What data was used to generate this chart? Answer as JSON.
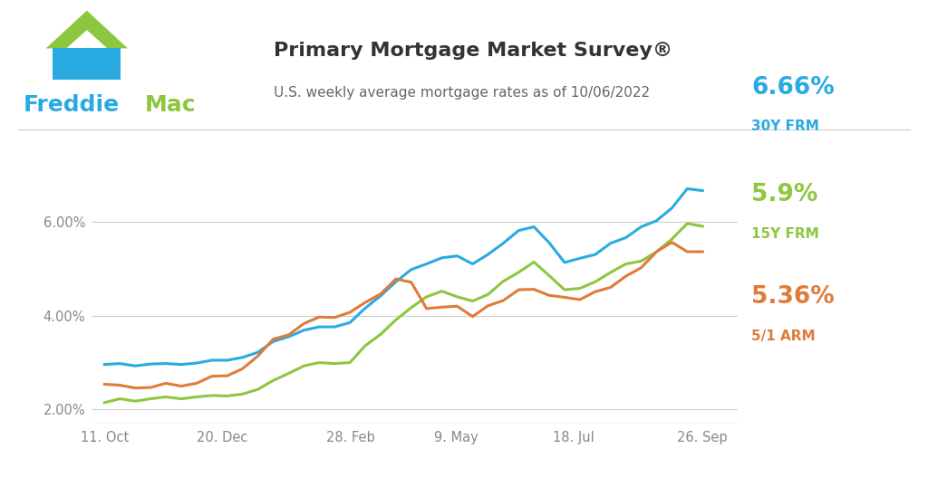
{
  "title": "Primary Mortgage Market Survey®",
  "subtitle": "U.S. weekly average mortgage rates as of 10/06/2022",
  "title_color": "#333333",
  "subtitle_color": "#666666",
  "bg_color": "#ffffff",
  "plot_bg_color": "#ffffff",
  "grid_color": "#cccccc",
  "freddie_blue": "#29abe2",
  "freddie_green": "#8dc63f",
  "x_labels": [
    "11. Oct",
    "20. Dec",
    "28. Feb",
    "9. May",
    "18. Jul",
    "26. Sep"
  ],
  "x_positions": [
    0,
    10,
    21,
    30,
    40,
    51
  ],
  "ylim": [
    1.7,
    7.4
  ],
  "yticks": [
    2.0,
    4.0,
    6.0
  ],
  "ytick_labels": [
    "2.00%",
    "4.00%",
    "6.00%"
  ],
  "line_30y_color": "#29abe2",
  "line_15y_color": "#8dc63f",
  "line_arm_color": "#e07b39",
  "label_30y": "6.66%",
  "label_30y_sub": "30Y FRM",
  "label_15y": "5.9%",
  "label_15y_sub": "15Y FRM",
  "label_arm": "5.36%",
  "label_arm_sub": "5/1 ARM",
  "series_30y": [
    2.96,
    2.98,
    2.93,
    2.97,
    2.98,
    2.96,
    2.99,
    3.05,
    3.05,
    3.11,
    3.22,
    3.45,
    3.55,
    3.69,
    3.76,
    3.76,
    3.85,
    4.16,
    4.42,
    4.72,
    4.98,
    5.1,
    5.23,
    5.27,
    5.1,
    5.3,
    5.54,
    5.81,
    5.89,
    5.55,
    5.13,
    5.22,
    5.3,
    5.54,
    5.66,
    5.89,
    6.02,
    6.29,
    6.7,
    6.66
  ],
  "series_15y": [
    2.15,
    2.23,
    2.18,
    2.23,
    2.27,
    2.23,
    2.27,
    2.3,
    2.29,
    2.33,
    2.43,
    2.62,
    2.77,
    2.93,
    3.0,
    2.98,
    3.0,
    3.36,
    3.6,
    3.91,
    4.17,
    4.4,
    4.52,
    4.4,
    4.31,
    4.45,
    4.73,
    4.92,
    5.14,
    4.85,
    4.55,
    4.58,
    4.72,
    4.92,
    5.1,
    5.16,
    5.36,
    5.63,
    5.96,
    5.9
  ],
  "series_arm": [
    2.54,
    2.52,
    2.46,
    2.47,
    2.56,
    2.5,
    2.56,
    2.71,
    2.72,
    2.87,
    3.14,
    3.5,
    3.59,
    3.83,
    3.97,
    3.96,
    4.07,
    4.28,
    4.46,
    4.78,
    4.71,
    4.15,
    4.18,
    4.2,
    3.98,
    4.21,
    4.32,
    4.55,
    4.56,
    4.43,
    4.39,
    4.34,
    4.51,
    4.6,
    4.84,
    5.02,
    5.36,
    5.56,
    5.36,
    5.36
  ],
  "line_width": 2.2
}
